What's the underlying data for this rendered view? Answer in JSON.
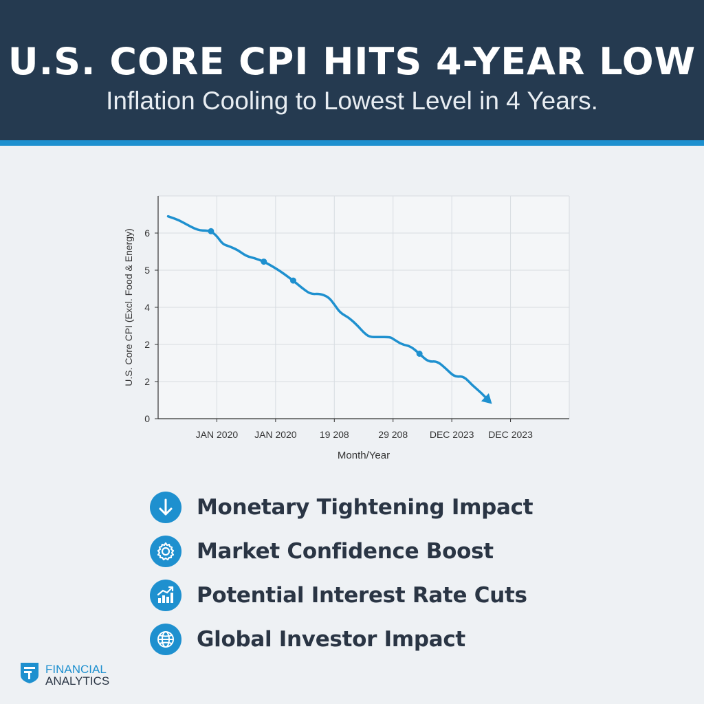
{
  "header": {
    "title": "U.S. CORE CPI HITS 4-YEAR LOW",
    "subtitle": "Inflation Cooling to Lowest Level in 4 Years."
  },
  "colors": {
    "header_bg": "#253a50",
    "accent": "#1e90cf",
    "text_dark": "#2a3544",
    "page_bg": "#eef1f4"
  },
  "chart_data": {
    "type": "line",
    "title": "",
    "xlabel": "Month/Year",
    "ylabel": "U.S. Core CPI (Excl. Food & Energy)",
    "ytick_labels": [
      "0",
      "2",
      "2",
      "4",
      "5",
      "6"
    ],
    "ylim": [
      0,
      6
    ],
    "x_tick_labels": [
      "JAN 2020",
      "JAN 2020",
      "19 208",
      "29 208",
      "DEC 2023",
      "DEC 2023"
    ],
    "grid": true,
    "series": [
      {
        "values_x": [
          0.17,
          0.35,
          0.5,
          0.62,
          0.72,
          0.8,
          0.9,
          1.0,
          1.1,
          1.2,
          1.35,
          1.5,
          1.65,
          1.8,
          1.95,
          2.1,
          2.3,
          2.45,
          2.6,
          2.75,
          2.9,
          3.0,
          3.1,
          3.25,
          3.4,
          3.5,
          3.6,
          3.75,
          3.95,
          4.0,
          4.15,
          4.3,
          4.45,
          4.6,
          4.75,
          4.9,
          5.05,
          5.2,
          5.35,
          5.5,
          5.65
        ],
        "values_y": [
          5.45,
          5.35,
          5.22,
          5.12,
          5.07,
          5.07,
          5.05,
          4.92,
          4.7,
          4.65,
          4.55,
          4.38,
          4.32,
          4.23,
          4.1,
          3.95,
          3.72,
          3.52,
          3.35,
          3.37,
          3.28,
          3.08,
          2.85,
          2.72,
          2.5,
          2.32,
          2.2,
          2.2,
          2.2,
          2.15,
          2.0,
          1.95,
          1.75,
          1.53,
          1.55,
          1.35,
          1.12,
          1.15,
          0.9,
          0.7,
          0.45
        ],
        "markers_index": [
          6,
          13,
          16,
          32
        ]
      }
    ]
  },
  "bullets": [
    {
      "label": "Monetary Tightening Impact",
      "icon": "arrow-down-icon"
    },
    {
      "label": "Market Confidence Boost",
      "icon": "gear-icon"
    },
    {
      "label": "Potential Interest Rate Cuts",
      "icon": "growth-chart-icon"
    },
    {
      "label": "Global Investor Impact",
      "icon": "globe-icon"
    }
  ],
  "brand": {
    "line1": "FINANCIAL",
    "line2": "ANALYTICS",
    "icon": "shield-logo-icon"
  }
}
